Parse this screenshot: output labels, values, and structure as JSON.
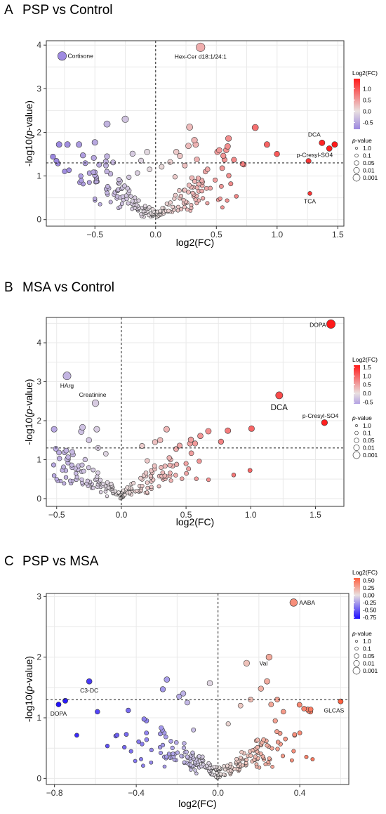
{
  "chart_data": [
    {
      "panel": "A",
      "title": "PSP vs Control",
      "type": "scatter",
      "xlabel": "log2(FC)",
      "ylabel_main": "-log10(",
      "ylabel_ital": "p",
      "ylabel_end": "-value)",
      "xlim": [
        -0.9,
        1.55
      ],
      "ylim": [
        -0.15,
        4.1
      ],
      "xticks": [
        -0.5,
        0.0,
        0.5,
        1.0,
        1.5
      ],
      "xtick_labels": [
        "−0.5",
        "0.0",
        "0.5",
        "1.0",
        "1.5"
      ],
      "yticks": [
        0,
        1,
        2,
        3,
        4
      ],
      "ytick_labels": [
        "0",
        "1",
        "2",
        "3",
        "4"
      ],
      "grid": true,
      "threshold_y": 1.3,
      "threshold_x": 0,
      "color_legend": {
        "title": "Log2(FC)",
        "tick_values": [
          1.0,
          0.5,
          0.0,
          -0.5
        ],
        "tick_labels": [
          "1.0",
          "0.5",
          "0.0",
          "-0.5"
        ],
        "min": -0.8,
        "max": 1.45
      },
      "size_legend": {
        "title_ital": "p",
        "title_end": "-value",
        "labels": [
          "1.0",
          "0.1",
          "0.05",
          "0.01",
          "0.001"
        ]
      },
      "labeled_points": [
        {
          "label": "Cortisone",
          "x": -0.77,
          "y": 3.75
        },
        {
          "label": "Hex-Cer d18:1/24:1",
          "x": 0.37,
          "y": 3.95
        },
        {
          "label": "DCA",
          "x": 1.37,
          "y": 1.76
        },
        {
          "label": "p-Cresyl-SO4",
          "x": 1.43,
          "y": 1.63
        },
        {
          "label": "TCA",
          "x": 1.27,
          "y": 0.6
        }
      ],
      "points": [
        [
          -0.5,
          1.77
        ],
        [
          -0.4,
          1.45
        ],
        [
          -0.41,
          1.33
        ],
        [
          -0.35,
          1.31
        ],
        [
          -0.4,
          2.19
        ],
        [
          -0.25,
          2.3
        ],
        [
          -0.07,
          1.55
        ],
        [
          -0.12,
          1.35
        ],
        [
          -0.19,
          1.51
        ],
        [
          -0.5,
          0.48
        ],
        [
          -0.4,
          0.62
        ],
        [
          -0.28,
          0.71
        ],
        [
          0.28,
          2.12
        ],
        [
          0.32,
          1.82
        ],
        [
          0.33,
          1.72
        ],
        [
          0.27,
          1.69
        ],
        [
          0.17,
          1.55
        ],
        [
          0.2,
          1.46
        ],
        [
          0.34,
          1.38
        ],
        [
          0.24,
          1.24
        ],
        [
          0.41,
          1.1
        ],
        [
          0.6,
          1.86
        ],
        [
          0.82,
          2.11
        ],
        [
          0.55,
          0.28
        ],
        [
          0.45,
          0.72
        ],
        [
          0.38,
          0.9
        ],
        [
          0.12,
          1.32
        ],
        [
          0.05,
          1.21
        ],
        [
          -0.05,
          1.15
        ],
        [
          -0.15,
          1.07
        ],
        [
          -0.22,
          0.97
        ],
        [
          -0.3,
          0.84
        ],
        [
          0.16,
          0.98
        ],
        [
          0.27,
          0.63
        ]
      ],
      "cloud_seed": 11,
      "cloud_n": 210,
      "cloud_xspread": 0.45,
      "cloud_yk": 2.5
    },
    {
      "panel": "B",
      "title": "MSA vs Control",
      "type": "scatter",
      "xlabel": "log2(FC)",
      "ylabel_main": "-log10(",
      "ylabel_ital": "p",
      "ylabel_end": "-value)",
      "xlim": [
        -0.58,
        1.72
      ],
      "ylim": [
        -0.2,
        4.65
      ],
      "xticks": [
        -0.5,
        0.0,
        0.5,
        1.0,
        1.5
      ],
      "xtick_labels": [
        "−0.5",
        "0.0",
        "0.5",
        "1.0",
        "1.5"
      ],
      "yticks": [
        0,
        1,
        2,
        3,
        4
      ],
      "ytick_labels": [
        "0",
        "1",
        "2",
        "3",
        "4"
      ],
      "grid": true,
      "threshold_y": 1.3,
      "threshold_x": 0,
      "color_legend": {
        "title": "Log2(FC)",
        "tick_values": [
          1.5,
          1.0,
          0.5,
          0.0,
          -0.5
        ],
        "tick_labels": [
          "1.5",
          "1.0",
          "0.5",
          "0.0",
          "-0.5"
        ],
        "min": -0.6,
        "max": 1.62
      },
      "size_legend": {
        "title_ital": "p",
        "title_end": "-value",
        "labels": [
          "1.0",
          "0.1",
          "0.05",
          "0.01",
          "0.001"
        ]
      },
      "labeled_points": [
        {
          "label": "DOPA",
          "x": 1.62,
          "y": 4.48
        },
        {
          "label": "HArg",
          "x": -0.42,
          "y": 3.15
        },
        {
          "label": "Creatinine",
          "x": -0.2,
          "y": 2.45
        },
        {
          "label": "DCA",
          "x": 1.22,
          "y": 2.65,
          "big": true
        },
        {
          "label": "p-Cresyl-SO4",
          "x": 1.57,
          "y": 1.95
        }
      ],
      "points": [
        [
          -0.52,
          1.78
        ],
        [
          -0.3,
          1.83
        ],
        [
          -0.31,
          1.72
        ],
        [
          -0.19,
          1.78
        ],
        [
          -0.25,
          1.5
        ],
        [
          -0.18,
          1.3
        ],
        [
          0.35,
          1.78
        ],
        [
          0.3,
          1.5
        ],
        [
          0.26,
          1.45
        ],
        [
          0.16,
          1.35
        ],
        [
          0.45,
          1.36
        ],
        [
          0.77,
          1.46
        ],
        [
          0.58,
          0.51
        ],
        [
          0.38,
          1.0
        ],
        [
          -0.43,
          0.72
        ],
        [
          -0.5,
          0.5
        ],
        [
          -0.38,
          0.45
        ],
        [
          -0.38,
          1.2
        ],
        [
          -0.12,
          1.15
        ],
        [
          0.5,
          0.9
        ],
        [
          0.42,
          0.6
        ],
        [
          0.2,
          0.97
        ],
        [
          -0.28,
          1.0
        ]
      ],
      "cloud_seed": 29,
      "cloud_n": 190,
      "cloud_xspread": 0.36,
      "cloud_yk": 2.6
    },
    {
      "panel": "C",
      "title": "PSP vs MSA",
      "type": "scatter",
      "xlabel": "log2(FC)",
      "ylabel_main": "-log10(",
      "ylabel_ital": "p",
      "ylabel_end": "-value)",
      "xlim": [
        -0.84,
        0.64
      ],
      "ylim": [
        -0.1,
        3.05
      ],
      "xticks": [
        -0.8,
        -0.4,
        0.0,
        0.4
      ],
      "xtick_labels": [
        "−0.8",
        "−0.4",
        "0.0",
        "0.4"
      ],
      "yticks": [
        0,
        1,
        2,
        3
      ],
      "ytick_labels": [
        "0",
        "1",
        "2",
        "3"
      ],
      "grid": true,
      "threshold_y": 1.3,
      "threshold_x": 0,
      "color_legend": {
        "title": "Log2(FC)",
        "tick_values": [
          0.5,
          0.25,
          0.0,
          -0.25,
          -0.5,
          -0.75
        ],
        "tick_labels": [
          "0.50",
          "0.25",
          "0.00",
          "-0.25",
          "-0.50",
          "-0.75"
        ],
        "min": -0.8,
        "max": 0.58
      },
      "size_legend": {
        "title_ital": "p",
        "title_end": "-value",
        "labels": [
          "1.0",
          "0.1",
          "0.05",
          "0.01",
          "0.001"
        ]
      },
      "labeled_points": [
        {
          "label": "AABA",
          "x": 0.37,
          "y": 2.9
        },
        {
          "label": "Val",
          "x": 0.25,
          "y": 2.0
        },
        {
          "label": "C3-DC",
          "x": -0.63,
          "y": 1.6
        },
        {
          "label": "DOPA",
          "x": -0.78,
          "y": 1.22
        },
        {
          "label": "GLCAS",
          "x": 0.6,
          "y": 1.27
        }
      ],
      "points": [
        [
          -0.59,
          1.1
        ],
        [
          -0.5,
          0.7
        ],
        [
          -0.25,
          1.63
        ],
        [
          -0.27,
          1.47
        ],
        [
          -0.19,
          1.35
        ],
        [
          -0.17,
          1.4
        ],
        [
          -0.04,
          1.57
        ],
        [
          -0.15,
          1.25
        ],
        [
          -0.35,
          0.95
        ],
        [
          -0.35,
          0.75
        ],
        [
          -0.27,
          0.55
        ],
        [
          -0.12,
          0.8
        ],
        [
          0.14,
          1.9
        ],
        [
          0.24,
          1.6
        ],
        [
          0.21,
          1.48
        ],
        [
          0.29,
          1.3
        ],
        [
          0.26,
          1.22
        ],
        [
          0.32,
          1.1
        ],
        [
          0.4,
          0.75
        ],
        [
          0.37,
          0.45
        ],
        [
          0.33,
          0.65
        ],
        [
          0.28,
          0.95
        ],
        [
          0.16,
          1.3
        ],
        [
          0.11,
          1.2
        ],
        [
          0.05,
          0.9
        ]
      ],
      "cloud_seed": 53,
      "cloud_n": 230,
      "cloud_xspread": 0.22,
      "cloud_yk": 2.5
    }
  ]
}
